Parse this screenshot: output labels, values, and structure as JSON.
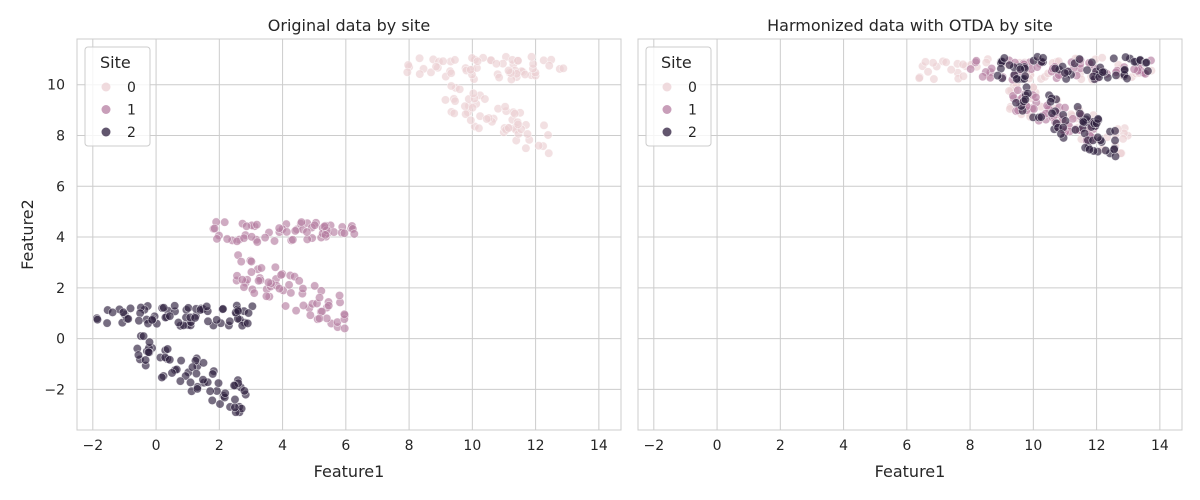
{
  "chart_data": [
    {
      "type": "scatter",
      "title": "Original data by site",
      "xlabel": "Feature1",
      "ylabel": "Feature2",
      "xlim": [
        -2.5,
        14.7
      ],
      "ylim": [
        -3.6,
        11.8
      ],
      "xticks": [
        -2,
        0,
        2,
        4,
        6,
        8,
        10,
        12,
        14
      ],
      "yticks": [
        -2,
        0,
        2,
        4,
        6,
        8,
        10
      ],
      "grid": true,
      "legend": {
        "title": "Site",
        "position": "upper-left",
        "labels": [
          "0",
          "1",
          "2"
        ]
      },
      "series": [
        {
          "name": "0",
          "color": "#ebcfd3",
          "clusters": [
            {
              "x": [
                7.9,
                12.9
              ],
              "y": [
                10.2,
                11.1
              ],
              "n": 60
            },
            {
              "x": [
                9.0,
                12.5
              ],
              "y": [
                7.3,
                10.0
              ],
              "n": 55,
              "trend": -0.55
            }
          ]
        },
        {
          "name": "1",
          "color": "#b57ea1",
          "clusters": [
            {
              "x": [
                1.7,
                6.3
              ],
              "y": [
                3.8,
                4.6
              ],
              "n": 60
            },
            {
              "x": [
                2.5,
                6.1
              ],
              "y": [
                0.4,
                3.3
              ],
              "n": 65,
              "trend": -0.55
            }
          ]
        },
        {
          "name": "2",
          "color": "#2d1e3e",
          "clusters": [
            {
              "x": [
                -1.9,
                3.1
              ],
              "y": [
                0.5,
                1.3
              ],
              "n": 70
            },
            {
              "x": [
                -0.6,
                2.9
              ],
              "y": [
                -2.9,
                0.1
              ],
              "n": 65,
              "trend": -0.6
            }
          ]
        }
      ]
    },
    {
      "type": "scatter",
      "title": "Harmonized data with OTDA by site",
      "xlabel": "Feature1",
      "ylabel": "",
      "xlim": [
        -2.5,
        14.7
      ],
      "ylim": [
        -3.6,
        11.8
      ],
      "xticks": [
        -2,
        0,
        2,
        4,
        6,
        8,
        10,
        12,
        14
      ],
      "yticks": [
        -2,
        0,
        2,
        4,
        6,
        8,
        10
      ],
      "grid": true,
      "legend": {
        "title": "Site",
        "position": "upper-left",
        "labels": [
          "0",
          "1",
          "2"
        ]
      },
      "series": [
        {
          "name": "0",
          "color": "#ebcfd3",
          "clusters": [
            {
              "x": [
                6.3,
                13.9
              ],
              "y": [
                10.2,
                11.1
              ],
              "n": 60
            },
            {
              "x": [
                9.2,
                13.0
              ],
              "y": [
                7.3,
                10.0
              ],
              "n": 55,
              "trend": -0.55
            }
          ]
        },
        {
          "name": "1",
          "color": "#b57ea1",
          "clusters": [
            {
              "x": [
                8.0,
                13.9
              ],
              "y": [
                10.2,
                11.0
              ],
              "n": 55
            },
            {
              "x": [
                9.3,
                12.0
              ],
              "y": [
                7.8,
                9.8
              ],
              "n": 60,
              "trend": -0.5
            }
          ]
        },
        {
          "name": "2",
          "color": "#2d1e3e",
          "clusters": [
            {
              "x": [
                8.8,
                13.7
              ],
              "y": [
                10.2,
                11.1
              ],
              "n": 60
            },
            {
              "x": [
                9.4,
                12.6
              ],
              "y": [
                7.1,
                10.2
              ],
              "n": 60,
              "trend": -0.6
            }
          ]
        }
      ]
    }
  ]
}
